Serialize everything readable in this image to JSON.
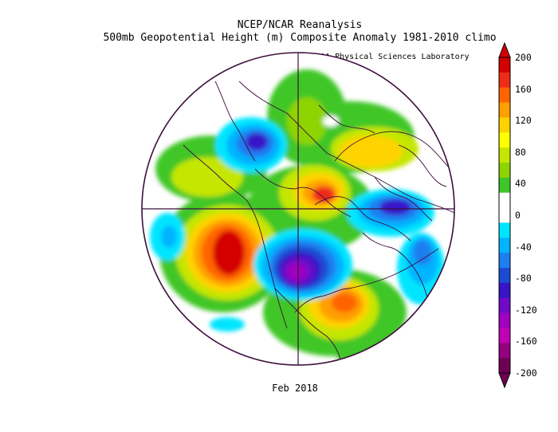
{
  "header": {
    "line1": "NCEP/NCAR Reanalysis",
    "line2": "500mb Geopotential Height (m) Composite Anomaly 1981-2010 climo",
    "credit": "NOAA Physical Sciences Laboratory"
  },
  "caption": "Feb 2018",
  "colorbar": {
    "labels": [
      "200",
      "160",
      "120",
      "80",
      "40",
      "0",
      "-40",
      "-80",
      "-120",
      "-160",
      "-200"
    ],
    "colors": [
      "#d40000",
      "#ee2c1a",
      "#ff6400",
      "#ff9f00",
      "#ffd300",
      "#ffff00",
      "#c4e600",
      "#8ed400",
      "#3fc628",
      "#ffffff",
      "#ffffff",
      "#00e5ff",
      "#00b4ff",
      "#1e7ff0",
      "#1c4bd2",
      "#3714c8",
      "#6e0ac8",
      "#a000c0",
      "#c000b4",
      "#94007e",
      "#6e0054"
    ]
  },
  "map": {
    "projection": "north-polar-stereographic",
    "color_positive_strong": "#d40000",
    "color_negative_strong": "#6e0ac8",
    "outline_color": "#3c0f3c"
  }
}
